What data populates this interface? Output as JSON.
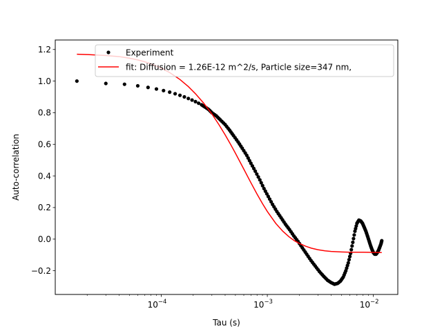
{
  "chart_data": {
    "type": "scatter",
    "xlabel": "Tau (s)",
    "ylabel": "Auto-correlation",
    "xscale": "log",
    "xlim": [
      1e-05,
      0.017
    ],
    "ylim": [
      -0.35,
      1.26
    ],
    "x_ticks": [
      {
        "value": 0.0001,
        "base": "10",
        "exp": "−4"
      },
      {
        "value": 0.001,
        "base": "10",
        "exp": "−3"
      },
      {
        "value": 0.01,
        "base": "10",
        "exp": "−2"
      }
    ],
    "y_ticks": [
      {
        "value": -0.2,
        "label": "−0.2"
      },
      {
        "value": 0.0,
        "label": "0.0"
      },
      {
        "value": 0.2,
        "label": "0.2"
      },
      {
        "value": 0.4,
        "label": "0.4"
      },
      {
        "value": 0.6,
        "label": "0.6"
      },
      {
        "value": 0.8,
        "label": "0.8"
      },
      {
        "value": 1.0,
        "label": "1.0"
      },
      {
        "value": 1.2,
        "label": "1.2"
      }
    ],
    "legend_position": "top-right",
    "series": [
      {
        "name": "Experiment",
        "kind": "scatter",
        "color": "#000000",
        "x": [
          1.6e-05,
          3e-05,
          4.5e-05,
          6e-05,
          7.5e-05,
          9e-05,
          0.000105,
          0.00012,
          0.000135,
          0.00015,
          0.000165,
          0.00018,
          0.000195,
          0.00021,
          0.000225,
          0.00024,
          0.00026,
          0.00028,
          0.0003,
          0.00033,
          0.00036,
          0.0004,
          0.00044,
          0.00048,
          0.00053,
          0.00058,
          0.00064,
          0.0007,
          0.00077,
          0.00085,
          0.00093,
          0.00102,
          0.00112,
          0.00123,
          0.00135,
          0.00148,
          0.00162,
          0.00178,
          0.00195,
          0.00214,
          0.00235,
          0.00258,
          0.00283,
          0.0031,
          0.0034,
          0.0037,
          0.004,
          0.0043,
          0.0046,
          0.0049,
          0.0052,
          0.0055,
          0.0058,
          0.0061,
          0.0064,
          0.0067,
          0.007,
          0.0073,
          0.0076,
          0.0079,
          0.0082,
          0.0085,
          0.0088,
          0.0091,
          0.0094,
          0.0097,
          0.01,
          0.0103,
          0.0106,
          0.0109,
          0.0112,
          0.0115,
          0.0118,
          0.012
        ],
        "y": [
          1.0,
          0.985,
          0.98,
          0.97,
          0.96,
          0.95,
          0.94,
          0.93,
          0.92,
          0.91,
          0.9,
          0.89,
          0.88,
          0.87,
          0.86,
          0.85,
          0.835,
          0.82,
          0.8,
          0.78,
          0.755,
          0.725,
          0.69,
          0.655,
          0.615,
          0.575,
          0.53,
          0.48,
          0.43,
          0.375,
          0.32,
          0.27,
          0.22,
          0.175,
          0.135,
          0.095,
          0.06,
          0.02,
          -0.015,
          -0.055,
          -0.095,
          -0.135,
          -0.17,
          -0.205,
          -0.235,
          -0.26,
          -0.275,
          -0.285,
          -0.28,
          -0.265,
          -0.24,
          -0.2,
          -0.15,
          -0.09,
          -0.02,
          0.05,
          0.1,
          0.12,
          0.115,
          0.1,
          0.075,
          0.05,
          0.02,
          -0.01,
          -0.04,
          -0.065,
          -0.085,
          -0.095,
          -0.095,
          -0.085,
          -0.07,
          -0.05,
          -0.03,
          -0.01
        ]
      },
      {
        "name": "fit: Diffusion = 1.26E-12 m^2/s, Particle size=347 nm,",
        "kind": "line",
        "color": "#ff0000",
        "x": [
          1.6e-05,
          2e-05,
          3e-05,
          4e-05,
          5e-05,
          6e-05,
          7e-05,
          8e-05,
          0.0001,
          0.00012,
          0.00015,
          0.00018,
          0.00021,
          0.00025,
          0.0003,
          0.00035,
          0.0004,
          0.00045,
          0.0005,
          0.0006,
          0.0007,
          0.0008,
          0.0009,
          0.001,
          0.0012,
          0.0014,
          0.0016,
          0.0018,
          0.002,
          0.0023,
          0.0026,
          0.003,
          0.0035,
          0.004,
          0.005,
          0.006,
          0.007,
          0.008,
          0.01,
          0.012
        ],
        "y": [
          1.17,
          1.168,
          1.162,
          1.155,
          1.145,
          1.134,
          1.122,
          1.109,
          1.082,
          1.054,
          1.01,
          0.965,
          0.92,
          0.862,
          0.792,
          0.724,
          0.66,
          0.6,
          0.544,
          0.443,
          0.357,
          0.285,
          0.225,
          0.175,
          0.1,
          0.05,
          0.015,
          -0.01,
          -0.027,
          -0.045,
          -0.057,
          -0.067,
          -0.074,
          -0.078,
          -0.081,
          -0.083,
          -0.083,
          -0.083,
          -0.084,
          -0.085
        ]
      }
    ]
  }
}
